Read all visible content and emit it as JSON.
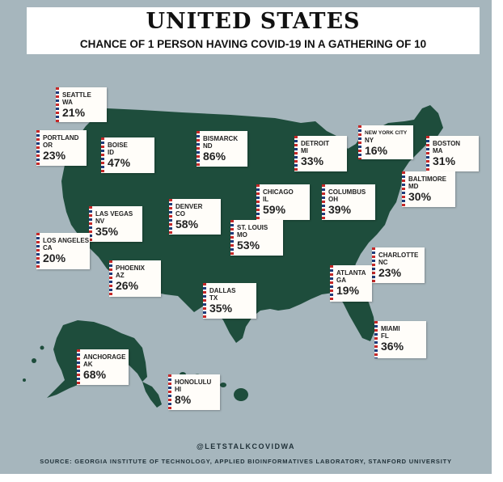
{
  "title": "UNITED STATES",
  "subtitle": "CHANCE OF 1 PERSON HAVING COVID-19 IN A GATHERING OF 10",
  "credit": "@LETSTALKCOVIDWA",
  "source": "SOURCE: GEORGIA INSTITUTE OF TECHNOLOGY, APPLIED BIOINFORMATIVES LABORATORY, STANFORD UNIVERSITY",
  "colors": {
    "background": "#a6b6bd",
    "land": "#1e4d3c",
    "card": "#fffdf9",
    "stripe_red": "#c62828",
    "stripe_blue": "#1d3b7a"
  },
  "cities": [
    {
      "city": "SEATTLE",
      "state": "WA",
      "pct": "21%"
    },
    {
      "city": "PORTLAND",
      "state": "OR",
      "pct": "23%"
    },
    {
      "city": "BOISE",
      "state": "ID",
      "pct": "47%"
    },
    {
      "city": "BISMARCK",
      "state": "ND",
      "pct": "86%"
    },
    {
      "city": "DETROIT",
      "state": "MI",
      "pct": "33%"
    },
    {
      "city": "NEW YORK CITY",
      "state": "NY",
      "pct": "16%"
    },
    {
      "city": "BOSTON",
      "state": "MA",
      "pct": "31%"
    },
    {
      "city": "BALTIMORE",
      "state": "MD",
      "pct": "30%"
    },
    {
      "city": "CHICAGO",
      "state": "IL",
      "pct": "59%"
    },
    {
      "city": "COLUMBUS",
      "state": "OH",
      "pct": "39%"
    },
    {
      "city": "DENVER",
      "state": "CO",
      "pct": "58%"
    },
    {
      "city": "LAS VEGAS",
      "state": "NV",
      "pct": "35%"
    },
    {
      "city": "ST. LOUIS",
      "state": "MO",
      "pct": "53%"
    },
    {
      "city": "LOS ANGELES",
      "state": "CA",
      "pct": "20%"
    },
    {
      "city": "CHARLOTTE",
      "state": "NC",
      "pct": "23%"
    },
    {
      "city": "PHOENIX",
      "state": "AZ",
      "pct": "26%"
    },
    {
      "city": "ATLANTA",
      "state": "GA",
      "pct": "19%"
    },
    {
      "city": "DALLAS",
      "state": "TX",
      "pct": "35%"
    },
    {
      "city": "MIAMI",
      "state": "FL",
      "pct": "36%"
    },
    {
      "city": "ANCHORAGE",
      "state": "AK",
      "pct": "68%"
    },
    {
      "city": "HONOLULU",
      "state": "HI",
      "pct": "8%"
    }
  ]
}
